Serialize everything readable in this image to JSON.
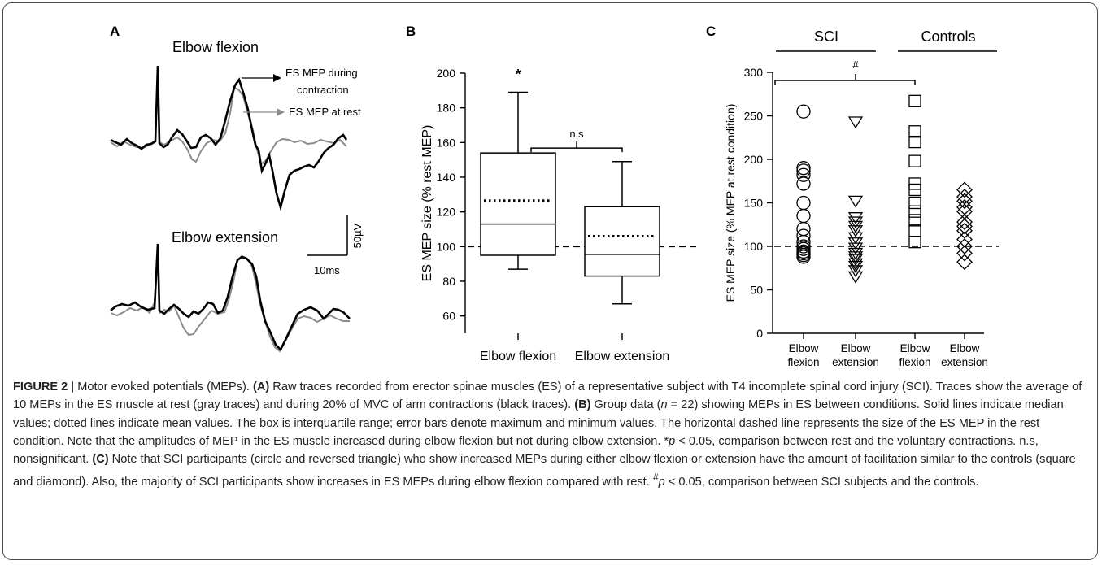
{
  "panel_a": {
    "label": "A",
    "top_title": "Elbow flexion",
    "bottom_title": "Elbow extension",
    "legend_contraction_line1": "ES MEP during",
    "legend_contraction_line2": "contraction",
    "legend_rest": "ES MEP at rest",
    "scale_amplitude": "50µV",
    "scale_time": "10ms",
    "colors": {
      "contraction": "#000000",
      "rest": "#8c8c8c"
    }
  },
  "panel_b": {
    "label": "B",
    "sig_star": "*",
    "ns_label": "n.s"
  },
  "panel_c": {
    "label": "C",
    "group_sci": "SCI",
    "group_controls": "Controls",
    "hash": "#"
  },
  "chart_data": [
    {
      "panel": "B",
      "type": "box",
      "ylabel": "ES MEP size (% rest MEP)",
      "ylim": [
        50,
        200
      ],
      "yticks": [
        60,
        80,
        100,
        120,
        140,
        160,
        180,
        200
      ],
      "reference_line": 100,
      "categories": [
        "Elbow flexion",
        "Elbow extension"
      ],
      "boxes": [
        {
          "category": "Elbow flexion",
          "min": 87,
          "q1": 95,
          "median": 113,
          "mean": 126.5,
          "q3": 154,
          "max": 189
        },
        {
          "category": "Elbow extension",
          "min": 67,
          "q1": 83,
          "median": 95.5,
          "mean": 106,
          "q3": 123,
          "max": 149
        }
      ]
    },
    {
      "panel": "C",
      "type": "scatter",
      "ylabel": "ES MEP size (% MEP at rest condition)",
      "ylim": [
        0,
        300
      ],
      "yticks": [
        0,
        50,
        100,
        150,
        200,
        250,
        300
      ],
      "reference_line": 100,
      "categories": [
        "Elbow\nflexion",
        "Elbow\nextension",
        "Elbow\nflexion",
        "Elbow\nextension"
      ],
      "series": [
        {
          "group": "SCI",
          "condition": "Elbow flexion",
          "marker": "circle",
          "values": [
            255,
            190,
            187,
            182,
            172,
            150,
            135,
            120,
            112,
            105,
            100,
            97,
            94,
            92,
            90,
            88
          ]
        },
        {
          "group": "SCI",
          "condition": "Elbow extension",
          "marker": "triangle-down",
          "values": [
            243,
            152,
            133,
            128,
            123,
            118,
            110,
            104,
            98,
            92,
            88,
            85,
            80,
            77,
            72,
            65
          ]
        },
        {
          "group": "Controls",
          "condition": "Elbow flexion",
          "marker": "square",
          "values": [
            267,
            232,
            220,
            198,
            172,
            165,
            150,
            140,
            130,
            118,
            105
          ]
        },
        {
          "group": "Controls",
          "condition": "Elbow extension",
          "marker": "diamond",
          "values": [
            165,
            157,
            152,
            145,
            140,
            128,
            123,
            118,
            108,
            100,
            92,
            82
          ]
        }
      ]
    }
  ],
  "caption": {
    "fig_label": "FIGURE 2",
    "sep": " | ",
    "title": "Motor evoked potentials (MEPs). ",
    "a_tag": "(A)",
    "a_text": " Raw traces recorded from erector spinae muscles (ES) of a representative subject with T4 incomplete spinal cord injury (SCI). Traces show the average of 10 MEPs in the ES muscle at rest (gray traces) and during 20% of MVC of arm contractions (black traces). ",
    "b_tag": "(B)",
    "b_text1": " Group data (",
    "n_sym": "n",
    "b_text2": " = 22) showing MEPs in ES between conditions. Solid lines indicate median values; dotted lines indicate mean values. The box is interquartile range; error bars denote maximum and minimum values. The horizontal dashed line represents the size of the ES MEP in the rest condition. Note that the amplitudes of MEP in the ES muscle increased during elbow flexion but not during elbow extension. *",
    "p_sym": "p",
    "b_text3": " < 0.05, comparison between rest and the voluntary contractions. n.s, nonsignificant. ",
    "c_tag": "(C)",
    "c_text1": " Note that SCI participants (circle and reversed triangle) who show increased MEPs during either elbow flexion or extension have the amount of facilitation similar to the controls (square and diamond). Also, the majority of SCI participants show increases in ES MEPs during elbow flexion compared with rest. ",
    "hash_sup": "#",
    "p_sym2": "p",
    "c_text2": " < 0.05, comparison between SCI subjects and the controls."
  }
}
